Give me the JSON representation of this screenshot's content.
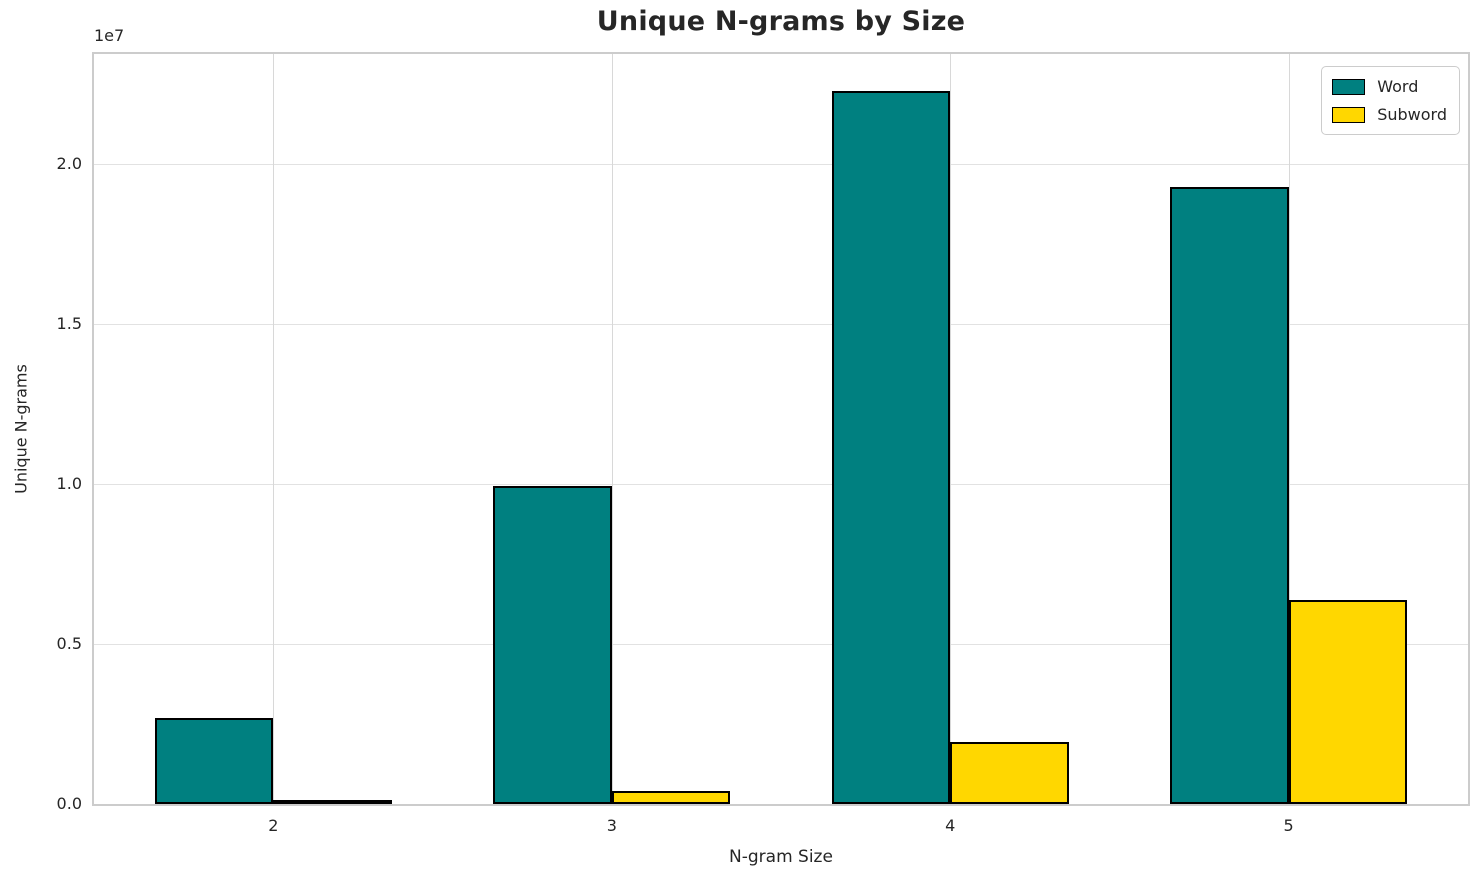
{
  "chart_data": {
    "type": "bar",
    "title": "Unique N-grams by Size",
    "xlabel": "N-gram Size",
    "ylabel": "Unique N-grams",
    "offset_text": "1e7",
    "categories": [
      "2",
      "3",
      "4",
      "5"
    ],
    "series": [
      {
        "name": "Word",
        "color": "#008080",
        "values": [
          2700000,
          9950000,
          22300000,
          19300000
        ]
      },
      {
        "name": "Subword",
        "color": "#FFD700",
        "values": [
          100000,
          400000,
          1950000,
          6380000
        ]
      }
    ],
    "bar_edge_color": "#000000",
    "bar_width_data_units": 0.35,
    "xlim": [
      -0.53,
      3.53
    ],
    "ylim": [
      0,
      23450000
    ],
    "y_tick_values": [
      0,
      5000000,
      10000000,
      15000000,
      20000000
    ],
    "y_tick_labels": [
      "0.0",
      "0.5",
      "1.0",
      "1.5",
      "2.0"
    ],
    "grid": true,
    "legend_position": "upper right"
  }
}
